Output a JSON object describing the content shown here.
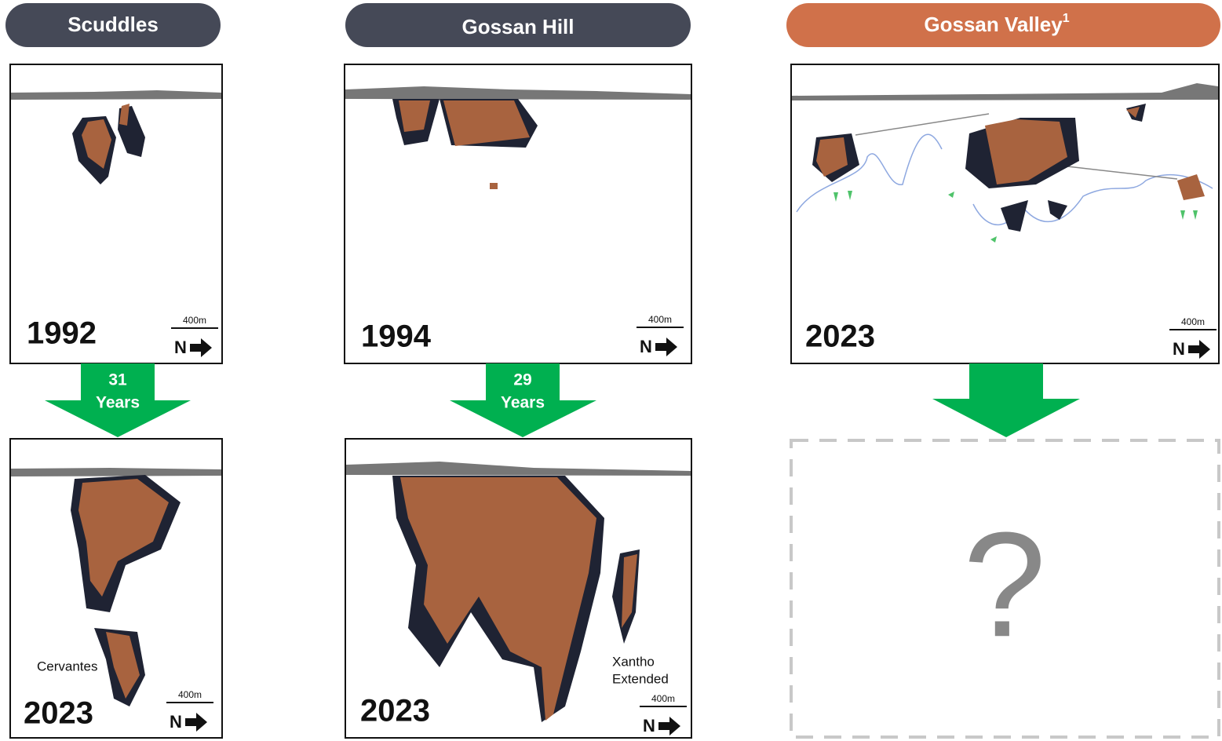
{
  "columns": [
    {
      "title": "Scuddles",
      "top": {
        "year": "1992",
        "scale": "400m",
        "north": "N"
      },
      "arrow": [
        "31",
        "Years"
      ],
      "bottom": {
        "year": "2023",
        "label": "Cervantes",
        "scale": "400m",
        "north": "N"
      }
    },
    {
      "title": "Gossan Hill",
      "top": {
        "year": "1994",
        "scale": "400m",
        "north": "N"
      },
      "arrow": [
        "29",
        "Years"
      ],
      "bottom": {
        "year": "2023",
        "label": [
          "Xantho",
          "Extended"
        ],
        "scale": "400m",
        "north": "N"
      }
    },
    {
      "title": "Gossan Valley",
      "title_note": "1",
      "top": {
        "year": "2023",
        "scale": "400m",
        "north": "N"
      },
      "placeholder": "?"
    }
  ]
}
